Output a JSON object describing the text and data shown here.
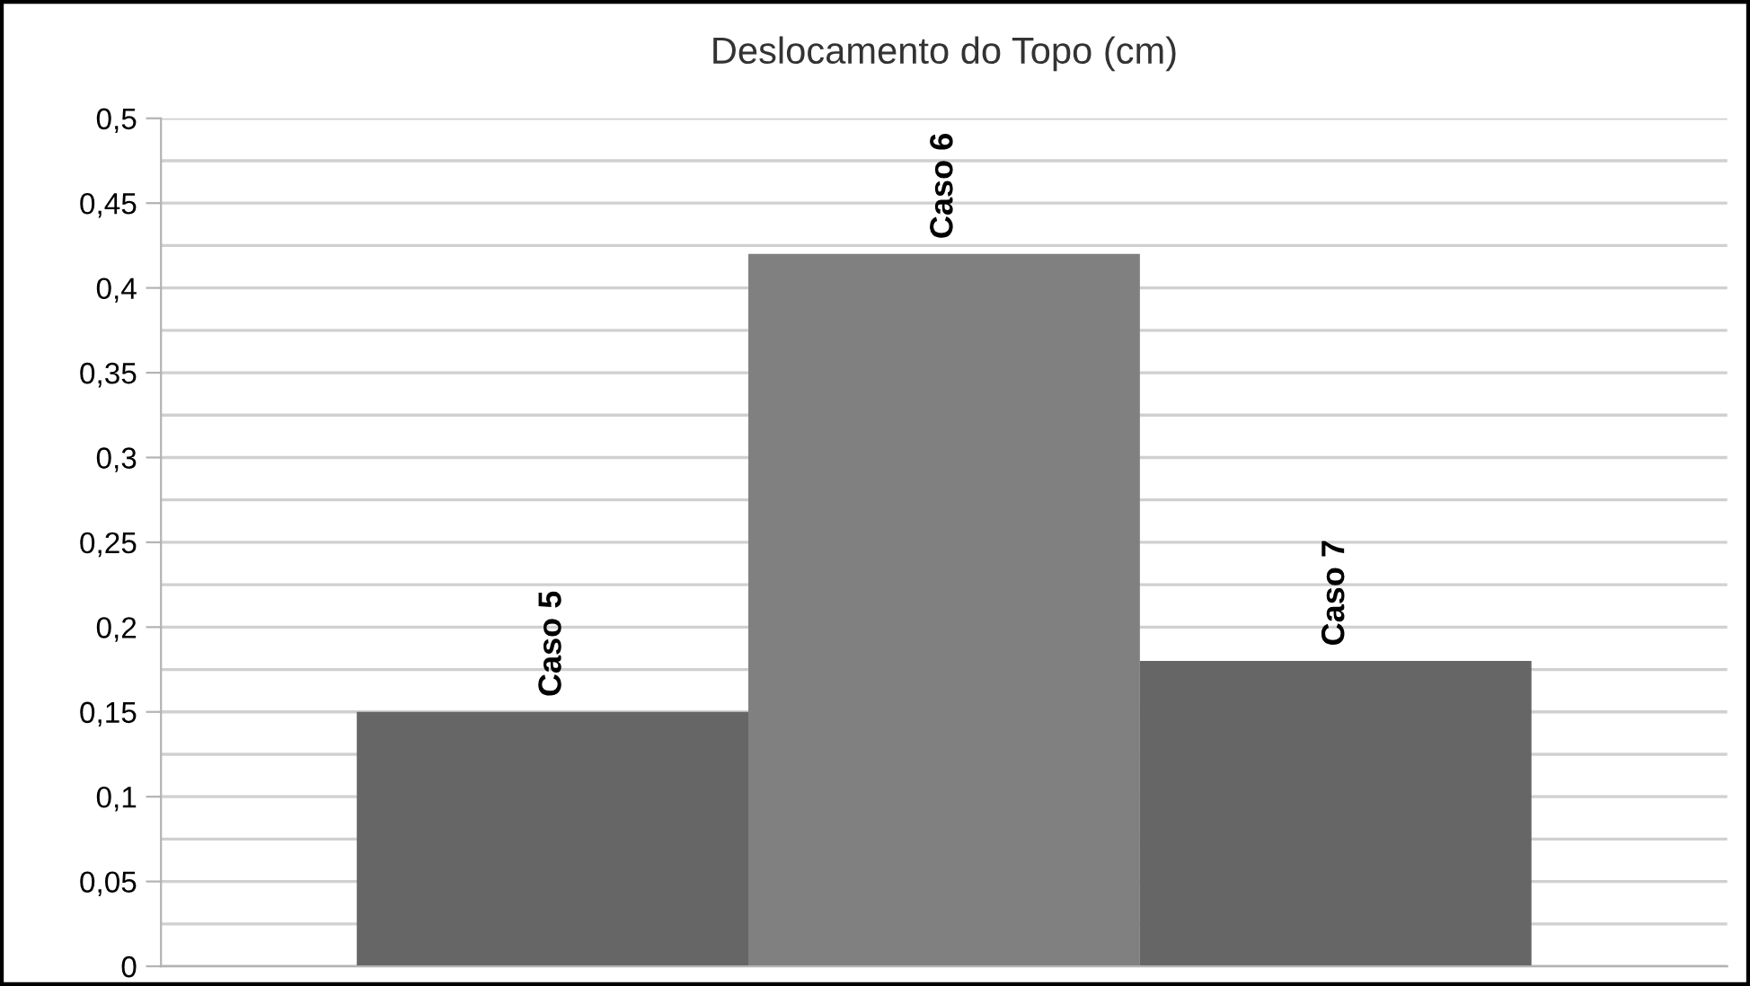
{
  "chart_data": {
    "type": "bar",
    "title": "Deslocamento do Topo (cm)",
    "categories": [
      null
    ],
    "series": [
      {
        "name": "Caso 5",
        "color": "#666666",
        "values": [
          0.15
        ]
      },
      {
        "name": "Caso 6",
        "color": "#808080",
        "values": [
          0.42
        ]
      },
      {
        "name": "Caso 7",
        "color": "#666666",
        "values": [
          0.18
        ]
      }
    ],
    "ylim": [
      0,
      0.5
    ],
    "yticks": [
      {
        "value": 0,
        "label": "0"
      },
      {
        "value": 0.025,
        "label": null
      },
      {
        "value": 0.05,
        "label": "0,05"
      },
      {
        "value": 0.075,
        "label": null
      },
      {
        "value": 0.1,
        "label": "0,1"
      },
      {
        "value": 0.125,
        "label": null
      },
      {
        "value": 0.15,
        "label": "0,15"
      },
      {
        "value": 0.175,
        "label": null
      },
      {
        "value": 0.2,
        "label": "0,2"
      },
      {
        "value": 0.225,
        "label": null
      },
      {
        "value": 0.25,
        "label": "0,25"
      },
      {
        "value": 0.275,
        "label": null
      },
      {
        "value": 0.3,
        "label": "0,3"
      },
      {
        "value": 0.325,
        "label": null
      },
      {
        "value": 0.35,
        "label": "0,35"
      },
      {
        "value": 0.375,
        "label": null
      },
      {
        "value": 0.4,
        "label": "0,4"
      },
      {
        "value": 0.425,
        "label": null
      },
      {
        "value": 0.45,
        "label": "0,45"
      },
      {
        "value": 0.475,
        "label": null
      },
      {
        "value": 0.5,
        "label": "0,5"
      }
    ],
    "grid": "y",
    "tick_labels": "y",
    "legend": false
  }
}
